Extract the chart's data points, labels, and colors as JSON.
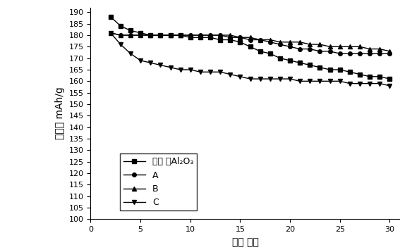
{
  "xlabel": "循环 次数",
  "ylabel": "比容量 mAh/g",
  "xlim": [
    0,
    31
  ],
  "ylim": [
    100,
    192
  ],
  "yticks": [
    100,
    105,
    110,
    115,
    120,
    125,
    130,
    135,
    140,
    145,
    150,
    155,
    160,
    165,
    170,
    175,
    180,
    185,
    190
  ],
  "xticks": [
    0,
    5,
    10,
    15,
    20,
    25,
    30
  ],
  "series": [
    {
      "label": "未包 覆Al₂O₃",
      "marker": "s",
      "color": "#000000",
      "x": [
        2,
        3,
        4,
        5,
        6,
        7,
        8,
        9,
        10,
        11,
        12,
        13,
        14,
        15,
        16,
        17,
        18,
        19,
        20,
        21,
        22,
        23,
        24,
        25,
        26,
        27,
        28,
        29,
        30
      ],
      "y": [
        188,
        184,
        182,
        181,
        180,
        180,
        180,
        180,
        179,
        179,
        179,
        178,
        178,
        177,
        175,
        173,
        172,
        170,
        169,
        168,
        167,
        166,
        165,
        165,
        164,
        163,
        162,
        162,
        161
      ]
    },
    {
      "label": "A",
      "marker": "o",
      "color": "#000000",
      "x": [
        2,
        3,
        4,
        5,
        6,
        7,
        8,
        9,
        10,
        11,
        12,
        13,
        14,
        15,
        16,
        17,
        18,
        19,
        20,
        21,
        22,
        23,
        24,
        25,
        26,
        27,
        28,
        29,
        30
      ],
      "y": [
        181,
        180,
        180,
        180,
        180,
        180,
        180,
        180,
        180,
        180,
        180,
        180,
        179,
        179,
        178,
        178,
        177,
        176,
        175,
        174,
        174,
        173,
        173,
        172,
        172,
        172,
        172,
        172,
        172
      ]
    },
    {
      "label": "B",
      "marker": "^",
      "color": "#000000",
      "x": [
        2,
        3,
        4,
        5,
        6,
        7,
        8,
        9,
        10,
        11,
        12,
        13,
        14,
        15,
        16,
        17,
        18,
        19,
        20,
        21,
        22,
        23,
        24,
        25,
        26,
        27,
        28,
        29,
        30
      ],
      "y": [
        181,
        180,
        180,
        180,
        180,
        180,
        180,
        180,
        180,
        180,
        180,
        180,
        180,
        179,
        179,
        178,
        178,
        177,
        177,
        177,
        176,
        176,
        175,
        175,
        175,
        175,
        174,
        174,
        173
      ]
    },
    {
      "label": "C",
      "marker": "v",
      "color": "#000000",
      "x": [
        2,
        3,
        4,
        5,
        6,
        7,
        8,
        9,
        10,
        11,
        12,
        13,
        14,
        15,
        16,
        17,
        18,
        19,
        20,
        21,
        22,
        23,
        24,
        25,
        26,
        27,
        28,
        29,
        30
      ],
      "y": [
        181,
        176,
        172,
        169,
        168,
        167,
        166,
        165,
        165,
        164,
        164,
        164,
        163,
        162,
        161,
        161,
        161,
        161,
        161,
        160,
        160,
        160,
        160,
        160,
        159,
        159,
        159,
        159,
        158
      ]
    }
  ],
  "background_color": "#ffffff",
  "fontsize_labels": 10,
  "fontsize_ticks": 8,
  "fontsize_legend": 9,
  "markersize": 4,
  "linewidth": 1.0
}
